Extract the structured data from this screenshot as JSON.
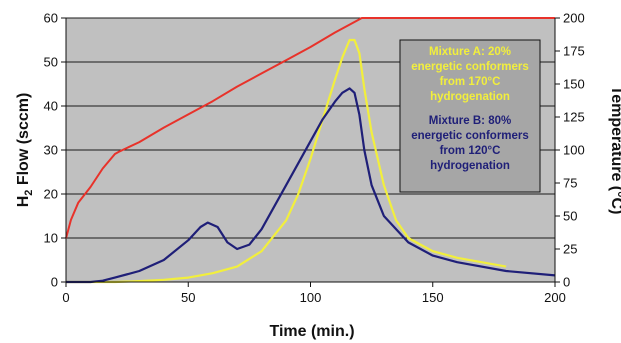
{
  "chart_data": {
    "type": "line",
    "xlabel": "Time (min.)",
    "ylabel_left": {
      "main": "H",
      "sub": "2",
      "rest": " Flow (sccm)"
    },
    "ylabel_right": "Temperature (°C)",
    "xlim": [
      0,
      200
    ],
    "ylim_left": [
      0,
      60
    ],
    "ylim_right": [
      0,
      200
    ],
    "x_ticks": [
      "0",
      "50",
      "100",
      "150",
      "200"
    ],
    "y_left_ticks": [
      "0",
      "10",
      "20",
      "30",
      "40",
      "50",
      "60"
    ],
    "y_right_ticks": [
      "0",
      "25",
      "50",
      "75",
      "100",
      "125",
      "150",
      "175",
      "200"
    ],
    "grid": true,
    "legend_position": "top-right",
    "colors": {
      "plot_bg": "#c0c0c0",
      "mixture_a": "#f2ef3c",
      "mixture_b": "#1f1f78",
      "temperature": "#e8322a"
    },
    "legend": {
      "mixture_a": [
        "Mixture A: 20%",
        "energetic conformers",
        "from 170°C",
        "hydrogenation"
      ],
      "mixture_b": [
        "Mixture B: 80%",
        "energetic conformers",
        "from 120°C",
        "hydrogenation"
      ]
    },
    "series": [
      {
        "key": "temperature",
        "axis": "right",
        "x": [
          0,
          2,
          5,
          10,
          15,
          20,
          22,
          30,
          40,
          50,
          60,
          70,
          80,
          90,
          100,
          110,
          119,
          121,
          130,
          150,
          170,
          200
        ],
        "y": [
          33,
          47,
          60,
          72,
          86,
          97,
          99,
          106,
          117,
          127,
          137,
          148,
          158,
          168,
          178,
          189,
          198,
          200,
          200,
          200,
          200,
          200
        ]
      },
      {
        "key": "mixture_b",
        "axis": "left",
        "x": [
          0,
          10,
          15,
          20,
          30,
          40,
          50,
          55,
          58,
          62,
          66,
          70,
          75,
          80,
          90,
          100,
          105,
          110,
          113,
          116,
          118,
          120,
          122,
          125,
          130,
          140,
          150,
          160,
          180,
          200
        ],
        "y": [
          0,
          0,
          0.3,
          1,
          2.5,
          5,
          9.5,
          12.5,
          13.5,
          12.5,
          9,
          7.5,
          8.5,
          12,
          22,
          32,
          37,
          41,
          43,
          44,
          43,
          38,
          30,
          22,
          15,
          9,
          6,
          4.5,
          2.5,
          1.5
        ]
      },
      {
        "key": "mixture_a",
        "axis": "left",
        "x": [
          0,
          20,
          30,
          40,
          50,
          60,
          70,
          80,
          90,
          95,
          100,
          105,
          110,
          113,
          116,
          118,
          120,
          122,
          125,
          130,
          135,
          140,
          145,
          150,
          160,
          170,
          180
        ],
        "y": [
          0,
          0,
          0.2,
          0.5,
          1,
          2,
          3.5,
          7,
          14,
          20,
          28,
          37,
          46,
          51,
          55,
          55,
          52,
          44,
          34,
          22,
          14,
          10,
          8.5,
          7,
          5.5,
          4.5,
          3.5
        ]
      }
    ]
  }
}
